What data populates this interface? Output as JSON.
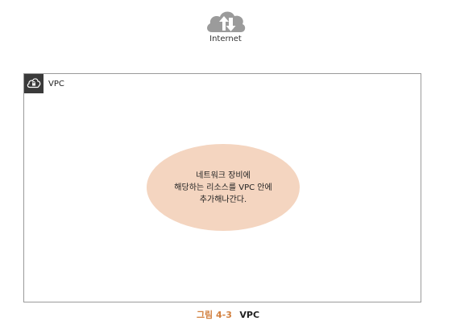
{
  "internet": {
    "label": "Internet",
    "icon": "cloud-upload-download-icon"
  },
  "vpc": {
    "label": "VPC",
    "icon": "cloud-lock-icon",
    "note_lines": [
      "네트워크 장비에",
      "해당하는 리소스를 VPC 안에",
      "추가해나간다."
    ],
    "note_color": "#f4d5c0"
  },
  "caption": {
    "number": "그림 4-3",
    "title": "VPC",
    "number_color": "#d2803f"
  }
}
